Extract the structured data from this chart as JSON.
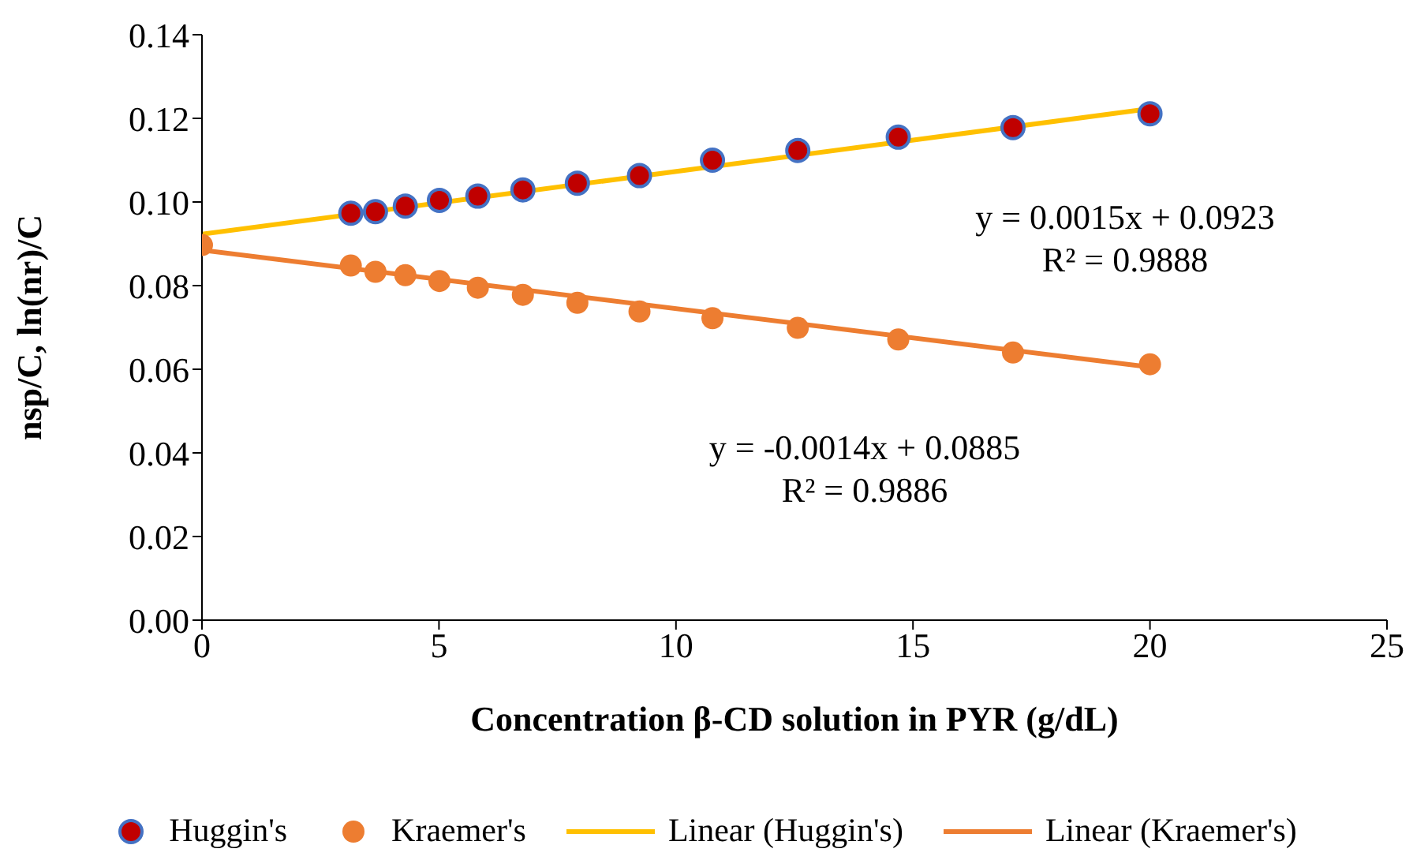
{
  "chart_data": {
    "type": "scatter",
    "xlabel": "Concentration β-CD solution in PYR (g/dL)",
    "ylabel": "nsp/C, ln(nr)/C",
    "xlim": [
      0,
      25
    ],
    "xticks": [
      0,
      5,
      10,
      15,
      20,
      25
    ],
    "ylim": [
      0,
      0.14
    ],
    "yticks": [
      {
        "value": 0,
        "label": "0.00"
      },
      {
        "value": 0.02,
        "label": "0.02"
      },
      {
        "value": 0.04,
        "label": "0.04"
      },
      {
        "value": 0.06,
        "label": "0.06"
      },
      {
        "value": 0.08,
        "label": "0.08"
      },
      {
        "value": 0.1,
        "label": "0.10"
      },
      {
        "value": 0.12,
        "label": "0.12"
      },
      {
        "value": 0.14,
        "label": "0.14"
      }
    ],
    "grid": false,
    "legend": "bottom",
    "marker": "circle",
    "series": [
      {
        "name": "Huggin's",
        "type": "scatter",
        "color": "#c00000",
        "x": [
          3.14,
          3.66,
          4.29,
          5.01,
          5.82,
          6.77,
          7.92,
          9.23,
          10.77,
          12.57,
          14.69,
          17.11,
          20
        ],
        "values": [
          0.0973,
          0.0977,
          0.099,
          0.1004,
          0.1014,
          0.1029,
          0.1045,
          0.1063,
          0.11,
          0.1123,
          0.1155,
          0.1178,
          0.1211
        ]
      },
      {
        "name": "Kraemer's",
        "type": "scatter",
        "color": "#ed7d31",
        "x": [
          0,
          3.14,
          3.66,
          4.29,
          5.01,
          5.82,
          6.77,
          7.92,
          9.23,
          10.77,
          12.57,
          14.69,
          17.11,
          20
        ],
        "values": [
          0.0897,
          0.0848,
          0.0833,
          0.0825,
          0.0811,
          0.0795,
          0.0778,
          0.0759,
          0.0738,
          0.0722,
          0.0699,
          0.0671,
          0.064,
          0.0612
        ]
      },
      {
        "name": "Linear (Huggin's)",
        "type": "line",
        "color": "#ffc000",
        "line_style": "solid",
        "marker": "none",
        "x": [
          0,
          20
        ],
        "values": [
          0.0923,
          0.1223
        ]
      },
      {
        "name": "Linear (Kraemer's)",
        "type": "line",
        "color": "#ed7d31",
        "line_style": "solid",
        "marker": "none",
        "x": [
          0,
          20
        ],
        "values": [
          0.0885,
          0.0605
        ]
      }
    ],
    "annotations": [
      "y = 0.0015x + 0.0923\nR² = 0.9888",
      "y = -0.0014x + 0.0885\nR² = 0.9886"
    ]
  }
}
